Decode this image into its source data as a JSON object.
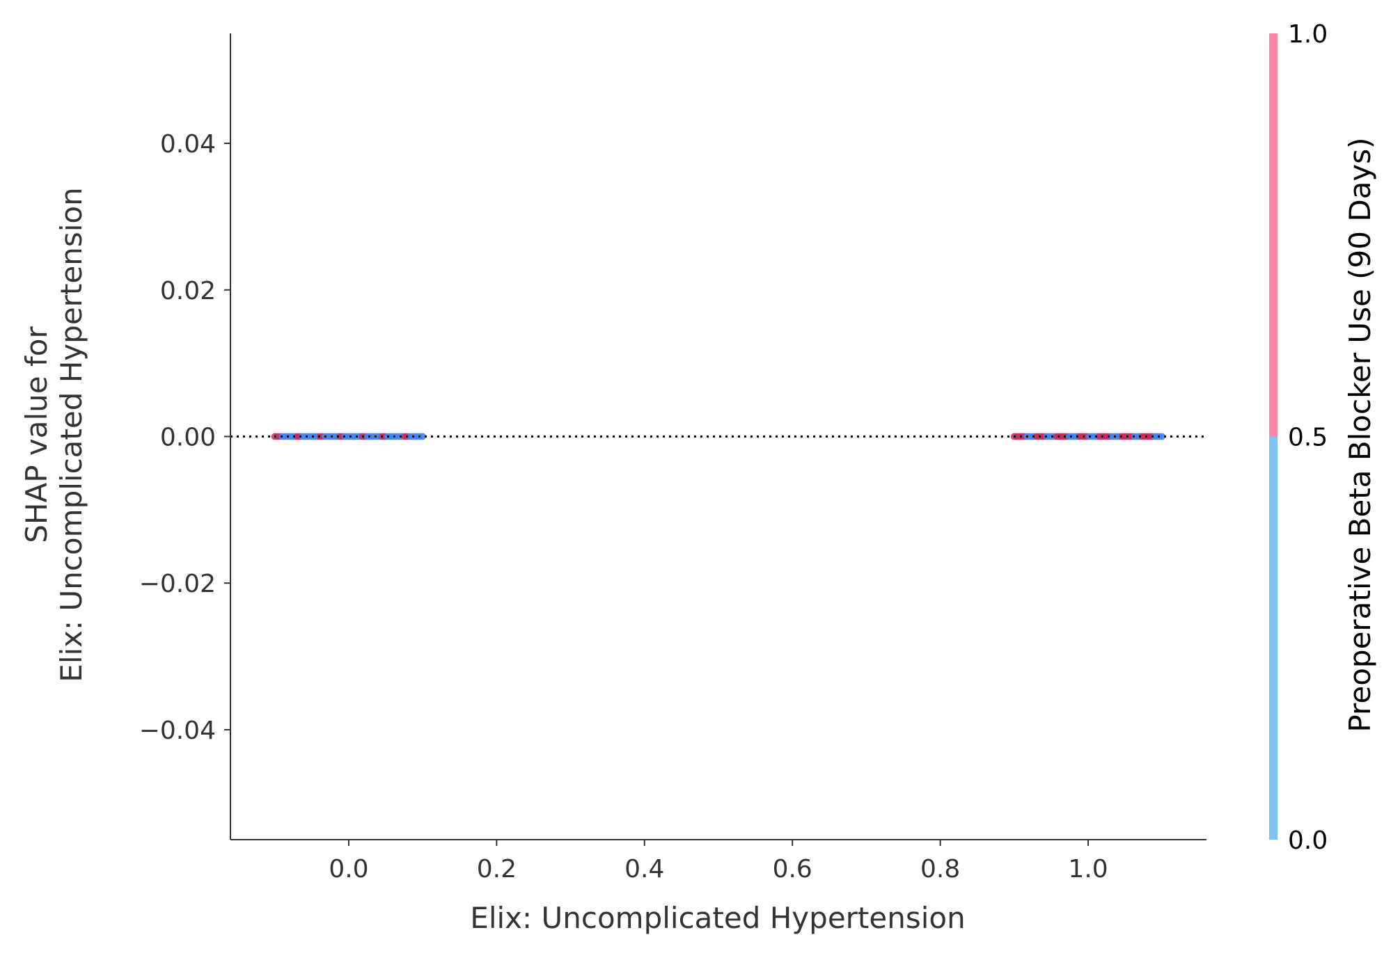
{
  "chart_data": {
    "type": "scatter",
    "title": "",
    "xlabel": "Elix: Uncomplicated Hypertension",
    "ylabel_lines": [
      "SHAP value for",
      "Elix: Uncomplicated Hypertension"
    ],
    "xlim": [
      -0.16,
      1.16
    ],
    "ylim": [
      -0.055,
      0.055
    ],
    "xticks": [
      {
        "value": 0.0,
        "label": "0.0"
      },
      {
        "value": 0.2,
        "label": "0.2"
      },
      {
        "value": 0.4,
        "label": "0.4"
      },
      {
        "value": 0.6,
        "label": "0.6"
      },
      {
        "value": 0.8,
        "label": "0.8"
      },
      {
        "value": 1.0,
        "label": "1.0"
      }
    ],
    "yticks": [
      {
        "value": 0.04,
        "label": "0.04"
      },
      {
        "value": 0.02,
        "label": "0.02"
      },
      {
        "value": 0.0,
        "label": "0.00"
      },
      {
        "value": -0.02,
        "label": "−0.02"
      },
      {
        "value": -0.04,
        "label": "−0.04"
      }
    ],
    "reference_line": {
      "y": 0.0,
      "style": "dotted",
      "color": "#000000"
    },
    "point_colors": {
      "low": "#3a86ff",
      "high": "#d6225e"
    },
    "clusters": [
      {
        "x_center": 0.0,
        "x_spread": 0.1,
        "y": 0.0,
        "count": 60,
        "high_fraction": 0.25
      },
      {
        "x_center": 1.0,
        "x_spread": 0.1,
        "y": 0.0,
        "count": 60,
        "high_fraction": 0.55
      }
    ],
    "colorbar": {
      "title": "Preoperative Beta Blocker Use (90 Days)",
      "range": [
        0.0,
        1.0
      ],
      "ticks": [
        {
          "value": 1.0,
          "label": "1.0"
        },
        {
          "value": 0.5,
          "label": "0.5"
        },
        {
          "value": 0.0,
          "label": "0.0"
        }
      ],
      "segments": [
        {
          "from": 0.0,
          "to": 0.5,
          "color": "#7fc3f5"
        },
        {
          "from": 0.5,
          "to": 1.0,
          "color": "#ff85a9"
        }
      ]
    },
    "grid": false,
    "legend": "none"
  }
}
